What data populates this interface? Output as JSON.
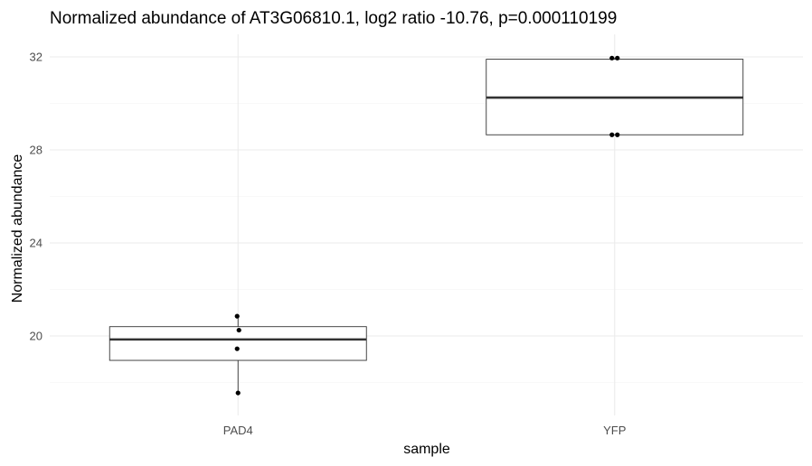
{
  "chart_data": {
    "type": "box",
    "title": "Normalized abundance of AT3G06810.1, log2 ratio -10.76, p=0.000110199",
    "xlabel": "sample",
    "ylabel": "Normalized abundance",
    "categories": [
      "PAD4",
      "YFP"
    ],
    "y_ticks": [
      20,
      24,
      28,
      32
    ],
    "ylim": [
      16.0,
      33.0
    ],
    "grid": true,
    "legend": "none",
    "boxes": [
      {
        "category": "PAD4",
        "whisker_low": 17.55,
        "q1": 18.95,
        "median": 19.85,
        "q3": 20.4,
        "whisker_high": 20.85
      },
      {
        "category": "YFP",
        "whisker_low": 28.65,
        "q1": 28.65,
        "median": 30.25,
        "q3": 31.9,
        "whisker_high": 31.95
      }
    ],
    "points": [
      {
        "category": "PAD4",
        "values": [
          20.85,
          20.25,
          19.45,
          17.55
        ]
      },
      {
        "category": "YFP",
        "values": [
          31.95,
          31.95,
          28.65,
          28.65
        ]
      }
    ],
    "colors": {
      "box_outline": "#333333",
      "point": "#000000",
      "grid": "#ebebeb"
    }
  }
}
